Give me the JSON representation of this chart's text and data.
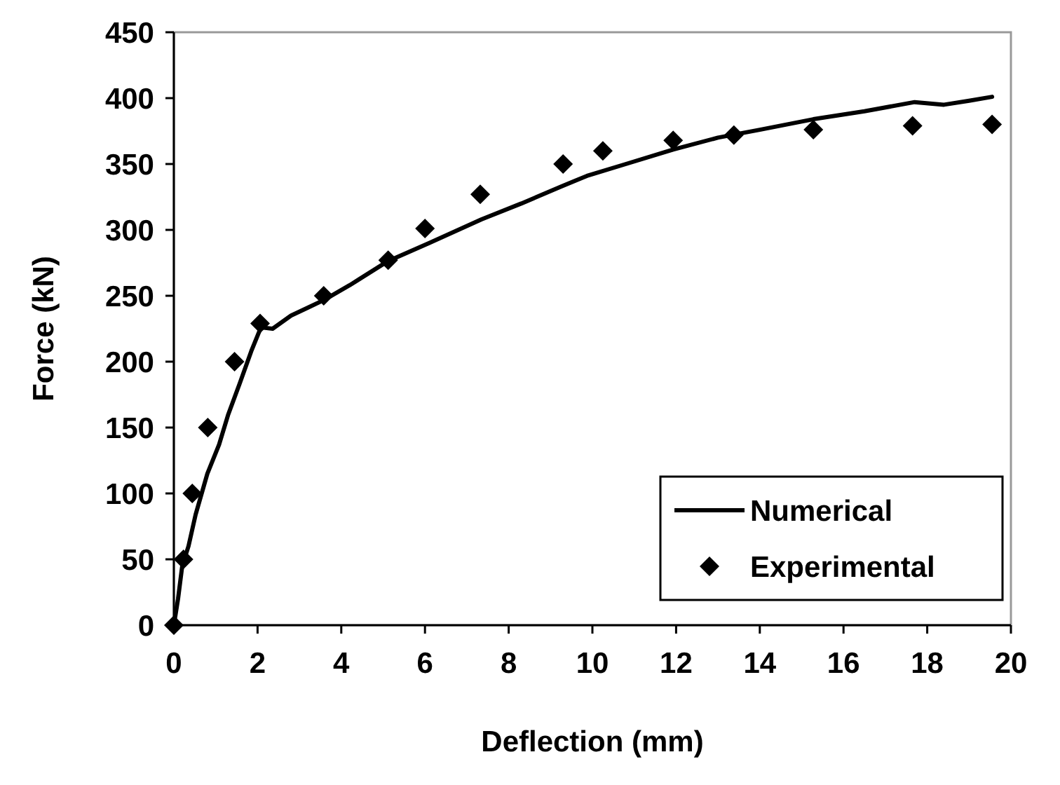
{
  "chart_data": {
    "type": "line",
    "xlabel": "Deflection (mm)",
    "ylabel": "Force (kN)",
    "xlim": [
      0,
      20
    ],
    "xticks": [
      0,
      2,
      4,
      6,
      8,
      10,
      12,
      14,
      16,
      18,
      20
    ],
    "ylim": [
      0,
      450
    ],
    "yticks": [
      0,
      50,
      100,
      150,
      200,
      250,
      300,
      350,
      400,
      450
    ],
    "grid": false,
    "legend": "bottom right",
    "series": [
      {
        "name": "Numerical",
        "color": "#000000",
        "marker": "none",
        "line_style": "solid",
        "x": [
          0,
          0.1,
          0.2,
          0.35,
          0.52,
          0.8,
          1.08,
          1.3,
          1.58,
          1.85,
          2.08,
          2.36,
          2.8,
          3.2,
          3.6,
          4.2,
          5.1,
          6.1,
          7.35,
          8.3,
          9.26,
          9.87,
          10.8,
          11.93,
          13.0,
          14.0,
          15.28,
          16.5,
          17.7,
          18.4,
          19.0,
          19.55
        ],
        "values": [
          0,
          20,
          45,
          60,
          84,
          115,
          137,
          160,
          184,
          208,
          226,
          225,
          235,
          241,
          247,
          258,
          276,
          290,
          308,
          320,
          333,
          341,
          350,
          361,
          370,
          376,
          384,
          390,
          397,
          395,
          398,
          401
        ]
      },
      {
        "name": "Experimental",
        "type": "scatter",
        "color": "#000000",
        "marker": "diamond",
        "x": [
          0,
          0.23,
          0.44,
          0.81,
          1.45,
          2.06,
          3.58,
          5.12,
          6.0,
          7.32,
          9.3,
          10.25,
          11.93,
          13.38,
          15.28,
          17.65,
          19.55
        ],
        "values": [
          0,
          50,
          100,
          150,
          200,
          229,
          250,
          277,
          301,
          327,
          350,
          360,
          368,
          372,
          376,
          379,
          380
        ]
      }
    ]
  }
}
